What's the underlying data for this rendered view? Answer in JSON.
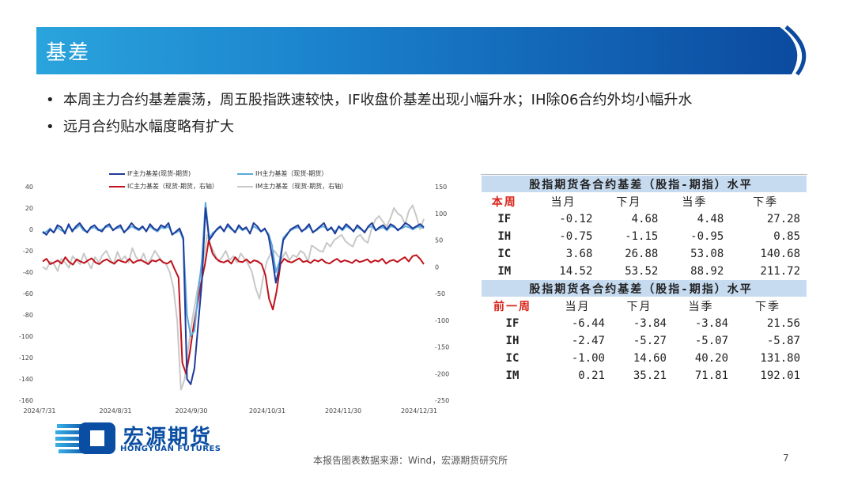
{
  "header": {
    "title": "基差"
  },
  "bullets": [
    "本周主力合约基差震荡，周五股指跌速较快，IF收盘价基差出现小幅升水；IH除06合约外均小幅升水",
    "远月合约贴水幅度略有扩大"
  ],
  "bullet_marker": "•",
  "colors": {
    "if": "#1f3c9a",
    "ih": "#5aa9dd",
    "ic": "#c0121b",
    "im": "#c8c8c8",
    "header_blue": "#0a4ea3",
    "table_hdr": "#c6dbf0"
  },
  "chart_data": {
    "type": "line",
    "legend": [
      "IF主力基差(现货-期货)",
      "IH主力基差（现货-期货）",
      "IC主力基差（现货-期货，右轴）",
      "IM主力基差（现货-期货，右轴）"
    ],
    "x_ticks": [
      "2024/7/31",
      "2024/8/31",
      "2024/9/30",
      "2024/10/31",
      "2024/11/30",
      "2024/12/31"
    ],
    "y_left_ticks": [
      "40",
      "20",
      "0",
      "-20",
      "-40",
      "-60",
      "-80",
      "-100",
      "-120",
      "-140",
      "-160"
    ],
    "y_right_ticks": [
      "150",
      "100",
      "50",
      "0",
      "-50",
      "-100",
      "-150",
      "-200",
      "-250"
    ],
    "ylim_left": [
      -160,
      40
    ],
    "ylim_right": [
      -250,
      150
    ],
    "series": [
      {
        "name": "IF主力基差(现货-期货)",
        "axis": "left",
        "values": [
          -2,
          -5,
          0,
          -3,
          4,
          2,
          -4,
          5,
          -2,
          3,
          6,
          1,
          -3,
          2,
          4,
          0,
          -2,
          3,
          5,
          -1,
          2,
          4,
          -3,
          1,
          6,
          2,
          0,
          3,
          -2,
          5,
          1,
          -1,
          4,
          2,
          6,
          -5,
          -2,
          1,
          -8,
          -140,
          -145,
          -130,
          -90,
          -50,
          20,
          -10,
          -5,
          0,
          3,
          -2,
          5,
          1,
          -3,
          4,
          0,
          2,
          -4,
          6,
          3,
          -2,
          1,
          -6,
          -25,
          -50,
          -35,
          -10,
          -5,
          0,
          2,
          4,
          -2,
          1,
          5,
          -3,
          0,
          3,
          6,
          -1,
          2,
          -4,
          3,
          0,
          5,
          2,
          -2,
          4,
          1,
          -3,
          3,
          6,
          -1,
          2,
          4,
          0,
          5,
          3,
          -1,
          2,
          6,
          4,
          1,
          3,
          5,
          2
        ]
      },
      {
        "name": "IH主力基差（现货-期货）",
        "axis": "left",
        "values": [
          -4,
          -2,
          1,
          -3,
          2,
          -1,
          -2,
          3,
          0,
          1,
          4,
          -1,
          -2,
          1,
          2,
          -1,
          0,
          2,
          3,
          0,
          1,
          2,
          -2,
          0,
          3,
          1,
          -1,
          2,
          -1,
          3,
          0,
          -2,
          2,
          1,
          3,
          -4,
          -3,
          -1,
          -10,
          -80,
          -100,
          -95,
          -60,
          -30,
          25,
          -8,
          -3,
          -1,
          2,
          -1,
          3,
          0,
          -2,
          2,
          -1,
          1,
          -3,
          3,
          1,
          -2,
          0,
          -4,
          -15,
          -40,
          -30,
          -8,
          -4,
          -1,
          1,
          2,
          -1,
          0,
          3,
          -2,
          -1,
          2,
          3,
          -1,
          1,
          -2,
          2,
          -1,
          3,
          1,
          -1,
          2,
          0,
          -2,
          2,
          3,
          -1,
          1,
          2,
          -1,
          3,
          2,
          0,
          1,
          3,
          2,
          0,
          2,
          3,
          1
        ]
      },
      {
        "name": "IC主力基差（现货-期货，右轴）",
        "axis": "right",
        "values": [
          10,
          15,
          5,
          8,
          12,
          6,
          18,
          9,
          4,
          14,
          10,
          7,
          12,
          16,
          8,
          5,
          11,
          14,
          9,
          6,
          13,
          10,
          8,
          15,
          7,
          11,
          13,
          9,
          5,
          12,
          10,
          14,
          8,
          6,
          11,
          -5,
          -20,
          -180,
          -200,
          -160,
          -110,
          -70,
          -30,
          5,
          50,
          25,
          15,
          10,
          8,
          12,
          6,
          18,
          10,
          9,
          14,
          7,
          12,
          10,
          5,
          -15,
          -60,
          -80,
          -45,
          5,
          15,
          10,
          8,
          12,
          16,
          9,
          11,
          7,
          13,
          10,
          14,
          8,
          6,
          11,
          15,
          9,
          12,
          10,
          7,
          13,
          9,
          11,
          14,
          8,
          12,
          10,
          15,
          6,
          11,
          13,
          9,
          14,
          18,
          10,
          20,
          22,
          15,
          5
        ]
      },
      {
        "name": "IM主力基差（现货-期货，右轴）",
        "axis": "right",
        "values": [
          0,
          -5,
          10,
          5,
          -8,
          15,
          8,
          -2,
          20,
          12,
          5,
          25,
          10,
          -3,
          18,
          8,
          22,
          30,
          15,
          5,
          28,
          12,
          20,
          8,
          35,
          18,
          10,
          25,
          5,
          15,
          30,
          20,
          10,
          5,
          -10,
          -40,
          -100,
          -230,
          -210,
          -150,
          -100,
          -60,
          -20,
          10,
          60,
          40,
          25,
          10,
          18,
          30,
          12,
          20,
          8,
          25,
          15,
          5,
          -10,
          -40,
          -60,
          -20,
          10,
          25,
          30,
          20,
          15,
          28,
          12,
          22,
          18,
          30,
          25,
          10,
          40,
          35,
          30,
          28,
          45,
          38,
          50,
          55,
          60,
          48,
          42,
          38,
          55,
          60,
          50,
          45,
          70,
          88,
          95,
          85,
          75,
          90,
          110,
          100,
          95,
          80,
          105,
          115,
          95,
          70,
          90
        ]
      }
    ]
  },
  "table_current": {
    "title": "股指期货各合约基差（股指-期指）水平",
    "period": "本周",
    "columns": [
      "当月",
      "下月",
      "当季",
      "下季"
    ],
    "rows": [
      {
        "label": "IF",
        "values": [
          "-0.12",
          "4.68",
          "4.48",
          "27.28"
        ]
      },
      {
        "label": "IH",
        "values": [
          "-0.75",
          "-1.15",
          "-0.95",
          "0.85"
        ]
      },
      {
        "label": "IC",
        "values": [
          "3.68",
          "26.88",
          "53.08",
          "140.68"
        ]
      },
      {
        "label": "IM",
        "values": [
          "14.52",
          "53.52",
          "88.92",
          "211.72"
        ]
      }
    ]
  },
  "table_previous": {
    "title": "股指期货各合约基差（股指-期指）水平",
    "period": "前一周",
    "columns": [
      "当月",
      "下月",
      "当季",
      "下季"
    ],
    "rows": [
      {
        "label": "IF",
        "values": [
          "-6.44",
          "-3.84",
          "-3.84",
          "21.56"
        ]
      },
      {
        "label": "IH",
        "values": [
          "-2.47",
          "-5.27",
          "-5.07",
          "-5.87"
        ]
      },
      {
        "label": "IC",
        "values": [
          "-1.00",
          "14.60",
          "40.20",
          "131.80"
        ]
      },
      {
        "label": "IM",
        "values": [
          "0.21",
          "35.21",
          "71.81",
          "192.01"
        ]
      }
    ]
  },
  "logo": {
    "cn": "宏源期货",
    "en": "HONGYUAN FUTURES"
  },
  "footer": {
    "source": "本报告图表数据来源：Wind，宏源期货研究所",
    "page": "7"
  }
}
